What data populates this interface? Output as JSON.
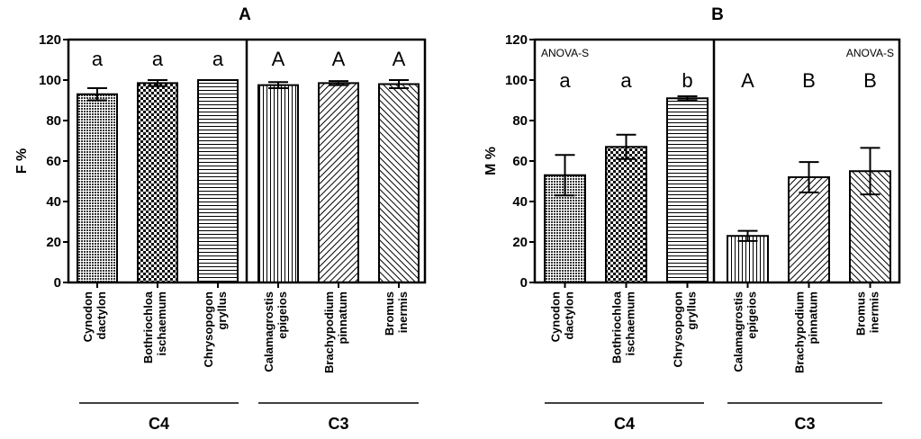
{
  "chart_data": [
    {
      "type": "bar",
      "title": "A",
      "ylabel": "F %",
      "ylim": [
        0,
        120
      ],
      "yticks": [
        0,
        20,
        40,
        60,
        80,
        100,
        120
      ],
      "categories": [
        [
          "Cynodon",
          "dactylon"
        ],
        [
          "Bothriochloa",
          "ischaemum"
        ],
        [
          "Chrysopogon",
          "gryllus"
        ],
        [
          "Calamagrostis",
          "epigeios"
        ],
        [
          "Brachypodium",
          "pinnatum"
        ],
        [
          "Bromus",
          "inermis"
        ]
      ],
      "values": [
        93,
        98.5,
        100,
        97.5,
        98.5,
        98
      ],
      "errors": [
        3,
        1.5,
        0,
        1.5,
        1,
        2
      ],
      "letters": [
        "a",
        "a",
        "a",
        "A",
        "A",
        "A"
      ],
      "patterns": [
        "dots",
        "checker",
        "hlines",
        "vlines",
        "diag-up",
        "diag-down"
      ],
      "annotations": [],
      "groups": [
        {
          "label": "C4",
          "members": [
            0,
            1,
            2
          ]
        },
        {
          "label": "C3",
          "members": [
            3,
            4,
            5
          ]
        }
      ]
    },
    {
      "type": "bar",
      "title": "B",
      "ylabel": "M %",
      "ylim": [
        0,
        120
      ],
      "yticks": [
        0,
        20,
        40,
        60,
        80,
        100,
        120
      ],
      "categories": [
        [
          "Cynodon",
          "dactylon"
        ],
        [
          "Bothriochloa",
          "ischaemum"
        ],
        [
          "Chrysopogon",
          "gryllus"
        ],
        [
          "Calamagrostis",
          "epigeios"
        ],
        [
          "Brachypodium",
          "pinnatum"
        ],
        [
          "Bromus",
          "inermis"
        ]
      ],
      "values": [
        53,
        67,
        91,
        23,
        52,
        55
      ],
      "errors": [
        10,
        6,
        1,
        2.5,
        7.5,
        11.5
      ],
      "letters": [
        "a",
        "a",
        "b",
        "A",
        "B",
        "B"
      ],
      "patterns": [
        "dots",
        "checker",
        "hlines",
        "vlines",
        "diag-up",
        "diag-down"
      ],
      "annotations": [
        "ANOVA-S",
        "ANOVA-S"
      ],
      "groups": [
        {
          "label": "C4",
          "members": [
            0,
            1,
            2
          ]
        },
        {
          "label": "C3",
          "members": [
            3,
            4,
            5
          ]
        }
      ]
    }
  ]
}
